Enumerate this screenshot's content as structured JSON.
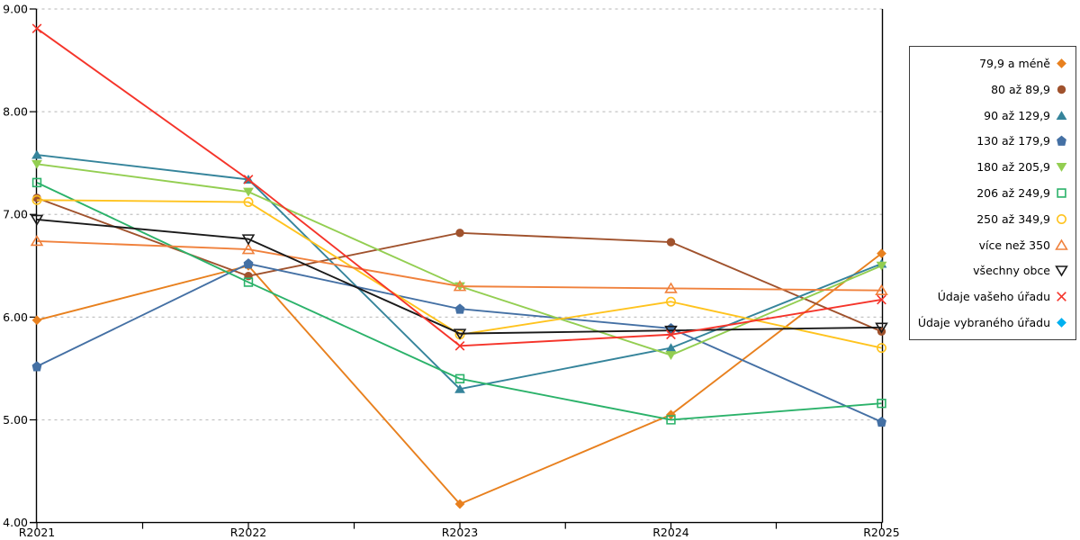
{
  "chart_data": {
    "type": "line",
    "title": "",
    "xlabel": "",
    "ylabel": "",
    "categories": [
      "R2021",
      "R2022",
      "R2023",
      "R2024",
      "R2025"
    ],
    "ylim": [
      4,
      9
    ],
    "y_ticks": [
      "9.00",
      "8.00",
      "7.00",
      "6.00",
      "5.00",
      "4.00"
    ],
    "y_tick_values": [
      9,
      8,
      7,
      6,
      5,
      4
    ],
    "grid": "horizontal dashed",
    "legend_position": "right outside",
    "colors": {
      "gridline": "#C3C3C3",
      "axis": "#000000",
      "background": "#FFFFFF"
    },
    "series": [
      {
        "name": "79,9 a méně",
        "color": "#E8801E",
        "marker": "diamond",
        "style": "filled",
        "values": [
          5.97,
          6.5,
          4.18,
          5.05,
          6.62
        ]
      },
      {
        "name": "80 až 89,9",
        "color": "#A0522D",
        "marker": "circle",
        "style": "filled",
        "values": [
          7.16,
          6.4,
          6.82,
          6.73,
          5.86
        ]
      },
      {
        "name": "90 až 129,9",
        "color": "#35849B",
        "marker": "triangle-up",
        "style": "filled",
        "values": [
          7.58,
          7.34,
          5.3,
          5.7,
          6.52
        ]
      },
      {
        "name": "130 až 179,9",
        "color": "#4470A4",
        "marker": "pentagon",
        "style": "filled",
        "values": [
          5.52,
          6.52,
          6.08,
          5.89,
          4.98
        ]
      },
      {
        "name": "180 až 205,9",
        "color": "#93CE51",
        "marker": "triangle-down",
        "style": "filled",
        "values": [
          7.49,
          7.22,
          6.3,
          5.63,
          6.5
        ]
      },
      {
        "name": "206 až 249,9",
        "color": "#2BB26A",
        "marker": "square",
        "style": "hollow",
        "values": [
          7.31,
          6.34,
          5.4,
          5.0,
          5.16
        ]
      },
      {
        "name": "250 až 349,9",
        "color": "#FFC31E",
        "marker": "circle",
        "style": "hollow",
        "values": [
          7.14,
          7.12,
          5.83,
          6.15,
          5.7
        ]
      },
      {
        "name": "více než 350",
        "color": "#F0813C",
        "marker": "triangle-up",
        "style": "hollow",
        "values": [
          6.74,
          6.66,
          6.3,
          6.28,
          6.26
        ]
      },
      {
        "name": "všechny obce",
        "color": "#1A1A1A",
        "marker": "triangle-down",
        "style": "hollow",
        "values": [
          6.95,
          6.76,
          5.84,
          5.87,
          5.9
        ]
      },
      {
        "name": "Údaje vašeho úřadu",
        "color": "#F5342A",
        "marker": "x",
        "style": "stroke",
        "values": [
          8.81,
          7.34,
          5.72,
          5.83,
          6.17
        ]
      },
      {
        "name": "Údaje vybraného úřadu",
        "color": "#00B0F0",
        "marker": "diamond",
        "style": "filled",
        "values": []
      }
    ]
  }
}
